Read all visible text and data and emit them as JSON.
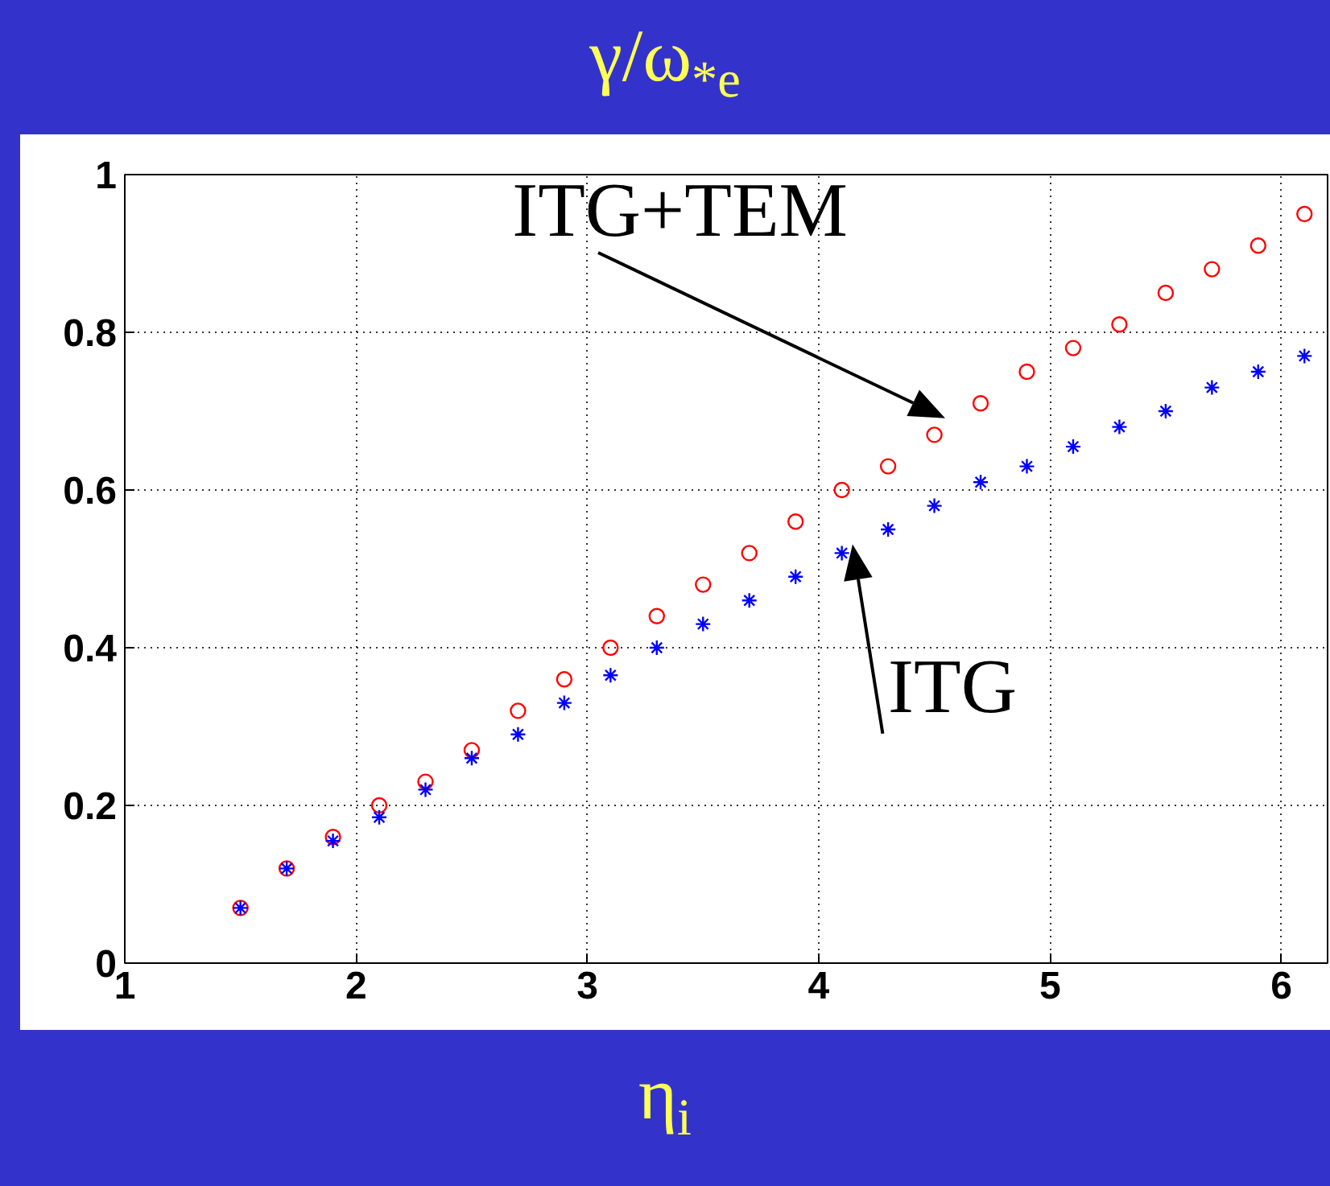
{
  "chart_data": {
    "type": "scatter",
    "title": "γ/ω$_{*e}$",
    "xlabel": "η$_{i}$",
    "xlim": [
      1,
      6.2
    ],
    "ylim": [
      0,
      1
    ],
    "xticks": [
      1,
      2,
      3,
      4,
      5,
      6
    ],
    "yticks": [
      0,
      0.2,
      0.4,
      0.6,
      0.8,
      1
    ],
    "grid": true,
    "x": [
      1.5,
      1.7,
      1.9,
      2.1,
      2.3,
      2.5,
      2.7,
      2.9,
      3.1,
      3.3,
      3.5,
      3.7,
      3.9,
      4.1,
      4.3,
      4.5,
      4.7,
      4.9,
      5.1,
      5.3,
      5.5,
      5.7,
      5.9,
      6.1
    ],
    "series": [
      {
        "color": "#ff0000",
        "marker": "circle",
        "values": [
          0.07,
          0.12,
          0.16,
          0.2,
          0.23,
          0.27,
          0.32,
          0.36,
          0.4,
          0.44,
          0.48,
          0.52,
          0.56,
          0.6,
          0.63,
          0.67,
          0.71,
          0.75,
          0.78,
          0.81,
          0.85,
          0.88,
          0.91,
          0.95
        ]
      },
      {
        "color": "#0000ff",
        "marker": "cross",
        "values": [
          0.07,
          0.12,
          0.155,
          0.185,
          0.22,
          0.26,
          0.29,
          0.33,
          0.365,
          0.4,
          0.43,
          0.46,
          0.49,
          0.52,
          0.55,
          0.58,
          0.61,
          0.63,
          0.655,
          0.68,
          0.7,
          0.73,
          0.75,
          0.77
        ]
      }
    ],
    "annotations": [
      {
        "text": "ITG+TEM",
        "x": 4.5,
        "y": 0.67
      },
      {
        "text": "ITG",
        "x": 4.1,
        "y": 0.52
      }
    ]
  }
}
